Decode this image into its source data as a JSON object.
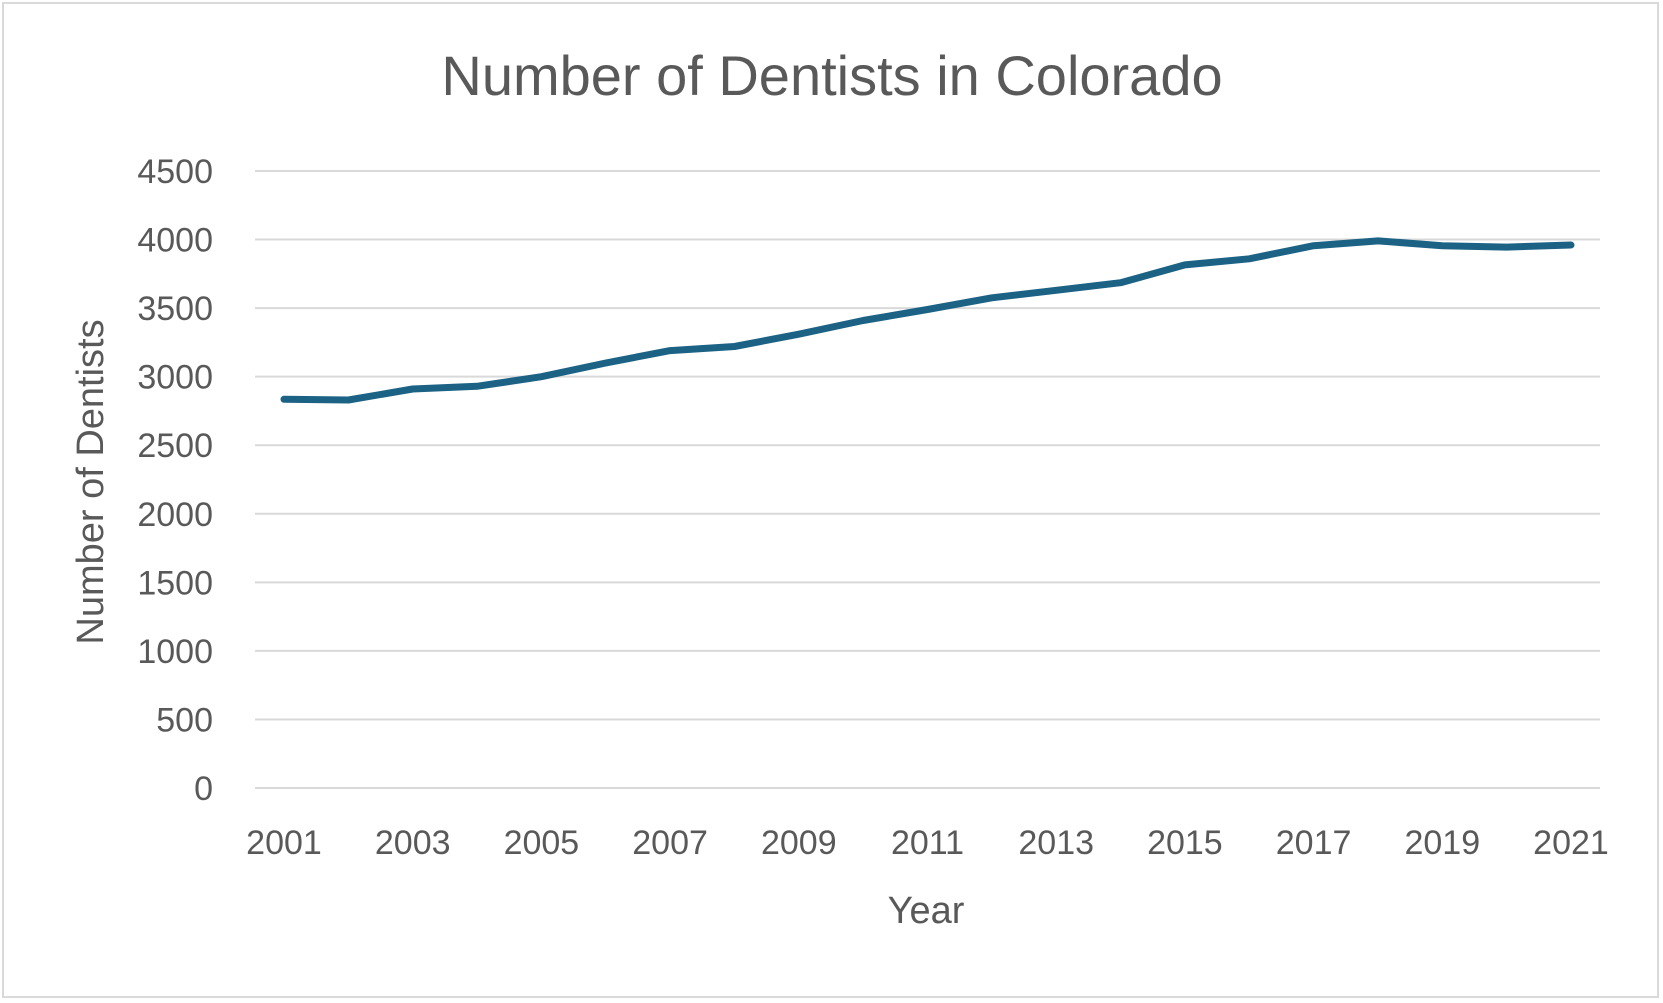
{
  "chart_data": {
    "type": "line",
    "title": "Number of Dentists in Colorado",
    "xlabel": "Year",
    "ylabel": "Number of Dentists",
    "x": [
      2001,
      2002,
      2003,
      2004,
      2005,
      2006,
      2007,
      2008,
      2009,
      2010,
      2011,
      2012,
      2013,
      2014,
      2015,
      2016,
      2017,
      2018,
      2019,
      2020,
      2021
    ],
    "x_tick_labels": [
      "2001",
      "2003",
      "2005",
      "2007",
      "2009",
      "2011",
      "2013",
      "2015",
      "2017",
      "2019",
      "2021"
    ],
    "y_tick_labels": [
      "0",
      "500",
      "1000",
      "1500",
      "2000",
      "2500",
      "3000",
      "3500",
      "4000",
      "4500"
    ],
    "ylim": [
      0,
      4500
    ],
    "series": [
      {
        "values": [
          2835,
          2830,
          2910,
          2930,
          3000,
          3100,
          3190,
          3220,
          3310,
          3410,
          3490,
          3575,
          3630,
          3685,
          3815,
          3860,
          3955,
          3990,
          3955,
          3945,
          3960
        ],
        "color": "#1b6284"
      }
    ],
    "grid": true,
    "gridline_color": "#d9d9d9",
    "legend": "none"
  }
}
